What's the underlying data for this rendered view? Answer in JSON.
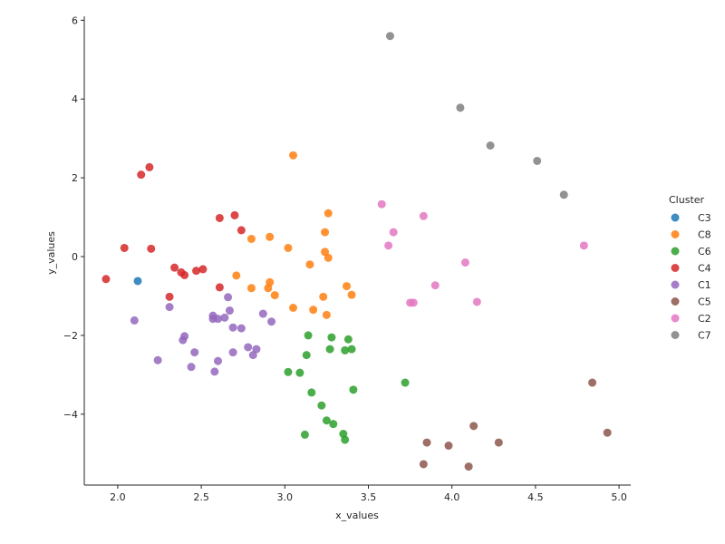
{
  "chart_data": {
    "type": "scatter",
    "xlabel": "x_values",
    "ylabel": "y_values",
    "xlim": [
      1.8,
      5.07
    ],
    "ylim": [
      -5.8,
      6.1
    ],
    "xticks": [
      "2.0",
      "2.5",
      "3.0",
      "3.5",
      "4.0",
      "4.5",
      "5.0"
    ],
    "yticks": [
      "−4",
      "−2",
      "0",
      "2",
      "4",
      "6"
    ],
    "grid": false,
    "legend": {
      "title": "Cluster",
      "placement": "right"
    },
    "series": [
      {
        "name": "C3",
        "color": "#1f77b4",
        "points": [
          [
            2.12,
            -0.62
          ]
        ]
      },
      {
        "name": "C8",
        "color": "#ff7f0e",
        "points": [
          [
            3.05,
            2.57
          ],
          [
            3.26,
            1.1
          ],
          [
            3.24,
            0.62
          ],
          [
            2.91,
            0.5
          ],
          [
            2.8,
            0.45
          ],
          [
            3.02,
            0.22
          ],
          [
            3.24,
            0.12
          ],
          [
            3.26,
            -0.03
          ],
          [
            3.15,
            -0.2
          ],
          [
            2.71,
            -0.48
          ],
          [
            2.91,
            -0.65
          ],
          [
            2.8,
            -0.8
          ],
          [
            2.9,
            -0.8
          ],
          [
            3.37,
            -0.75
          ],
          [
            2.94,
            -0.98
          ],
          [
            3.4,
            -0.97
          ],
          [
            3.23,
            -1.02
          ],
          [
            3.05,
            -1.3
          ],
          [
            3.17,
            -1.35
          ],
          [
            3.25,
            -1.48
          ]
        ]
      },
      {
        "name": "C6",
        "color": "#2ca02c",
        "points": [
          [
            3.14,
            -2.0
          ],
          [
            3.28,
            -2.05
          ],
          [
            3.38,
            -2.1
          ],
          [
            3.27,
            -2.35
          ],
          [
            3.36,
            -2.38
          ],
          [
            3.4,
            -2.35
          ],
          [
            3.13,
            -2.5
          ],
          [
            3.02,
            -2.93
          ],
          [
            3.09,
            -2.95
          ],
          [
            3.72,
            -3.2
          ],
          [
            3.41,
            -3.38
          ],
          [
            3.16,
            -3.45
          ],
          [
            3.22,
            -3.78
          ],
          [
            3.25,
            -4.16
          ],
          [
            3.29,
            -4.25
          ],
          [
            3.35,
            -4.5
          ],
          [
            3.12,
            -4.52
          ],
          [
            3.36,
            -4.65
          ]
        ]
      },
      {
        "name": "C4",
        "color": "#d62728",
        "points": [
          [
            2.19,
            2.27
          ],
          [
            2.14,
            2.08
          ],
          [
            2.7,
            1.05
          ],
          [
            2.61,
            0.98
          ],
          [
            2.74,
            0.67
          ],
          [
            2.04,
            0.22
          ],
          [
            2.2,
            0.2
          ],
          [
            2.34,
            -0.28
          ],
          [
            2.51,
            -0.32
          ],
          [
            2.47,
            -0.36
          ],
          [
            2.38,
            -0.4
          ],
          [
            2.4,
            -0.47
          ],
          [
            1.93,
            -0.57
          ],
          [
            2.61,
            -0.78
          ],
          [
            2.31,
            -1.02
          ]
        ]
      },
      {
        "name": "C1",
        "color": "#9467bd",
        "points": [
          [
            2.66,
            -1.03
          ],
          [
            2.31,
            -1.28
          ],
          [
            2.67,
            -1.37
          ],
          [
            2.87,
            -1.45
          ],
          [
            2.57,
            -1.5
          ],
          [
            2.64,
            -1.55
          ],
          [
            2.57,
            -1.58
          ],
          [
            2.6,
            -1.58
          ],
          [
            2.1,
            -1.62
          ],
          [
            2.92,
            -1.65
          ],
          [
            2.69,
            -1.8
          ],
          [
            2.74,
            -1.82
          ],
          [
            2.4,
            -2.02
          ],
          [
            2.39,
            -2.12
          ],
          [
            2.78,
            -2.3
          ],
          [
            2.83,
            -2.35
          ],
          [
            2.46,
            -2.43
          ],
          [
            2.69,
            -2.43
          ],
          [
            2.81,
            -2.5
          ],
          [
            2.24,
            -2.63
          ],
          [
            2.6,
            -2.65
          ],
          [
            2.44,
            -2.8
          ],
          [
            2.58,
            -2.92
          ]
        ]
      },
      {
        "name": "C5",
        "color": "#8c564b",
        "points": [
          [
            4.84,
            -3.2
          ],
          [
            4.13,
            -4.3
          ],
          [
            4.93,
            -4.47
          ],
          [
            3.85,
            -4.72
          ],
          [
            4.28,
            -4.72
          ],
          [
            3.98,
            -4.8
          ],
          [
            3.83,
            -5.27
          ],
          [
            4.1,
            -5.33
          ]
        ]
      },
      {
        "name": "C2",
        "color": "#e377c2",
        "points": [
          [
            3.58,
            1.33
          ],
          [
            3.83,
            1.03
          ],
          [
            3.65,
            0.62
          ],
          [
            3.62,
            0.28
          ],
          [
            4.79,
            0.28
          ],
          [
            4.08,
            -0.15
          ],
          [
            3.9,
            -0.73
          ],
          [
            4.15,
            -1.15
          ],
          [
            3.75,
            -1.17
          ],
          [
            3.77,
            -1.17
          ]
        ]
      },
      {
        "name": "C7",
        "color": "#7f7f7f",
        "points": [
          [
            3.63,
            5.6
          ],
          [
            4.05,
            3.78
          ],
          [
            4.23,
            2.82
          ],
          [
            4.51,
            2.43
          ],
          [
            4.67,
            1.57
          ]
        ]
      }
    ]
  }
}
